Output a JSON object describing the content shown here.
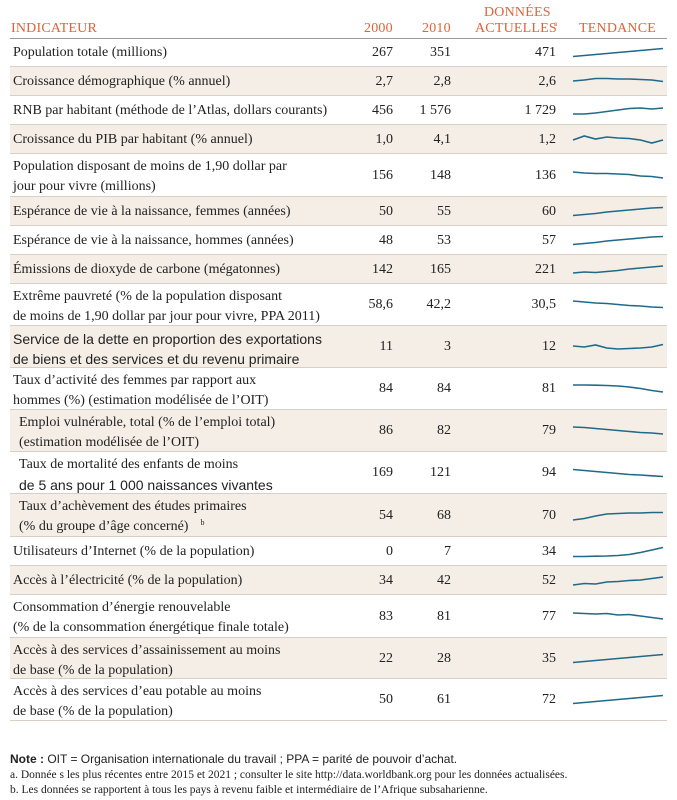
{
  "headers": {
    "indicator": "INDICATEUR",
    "y2000": "2000",
    "y2010": "2010",
    "current_line1": "DONNÉES",
    "current_line2": "ACTUELLES",
    "current_sup": "a",
    "trend": "TENDANCE"
  },
  "rows": [
    {
      "l1": "Population totale (millions)",
      "l2": "",
      "v2000": "267",
      "v2010": "351",
      "vcur": "471",
      "trend": [
        0.15,
        0.25,
        0.35,
        0.45,
        0.55,
        0.65,
        0.75,
        0.85,
        0.95
      ]
    },
    {
      "l1": "Croissance démographique (% annuel)",
      "l2": "",
      "v2000": "2,7",
      "v2010": "2,8",
      "vcur": "2,6",
      "trend": [
        0.6,
        0.7,
        0.85,
        0.85,
        0.8,
        0.8,
        0.75,
        0.7,
        0.55
      ]
    },
    {
      "l1": "RNB par habitant (méthode de l’Atlas, dollars courants)",
      "l2": "",
      "v2000": "456",
      "v2010": "1 576",
      "vcur": "1 729",
      "trend": [
        0.2,
        0.2,
        0.3,
        0.45,
        0.6,
        0.75,
        0.8,
        0.7,
        0.8
      ]
    },
    {
      "l1": "Croissance du PIB par habitant (% annuel)",
      "l2": "",
      "v2000": "1,0",
      "v2010": "4,1",
      "vcur": "1,2",
      "trend": [
        0.5,
        0.9,
        0.6,
        0.8,
        0.7,
        0.65,
        0.5,
        0.2,
        0.5
      ]
    },
    {
      "l1": "Population disposant de moins de 1,90 dollar par",
      "l2": "jour pour vivre (millions)",
      "v2000": "156",
      "v2010": "148",
      "vcur": "136",
      "trend": [
        0.9,
        0.8,
        0.75,
        0.75,
        0.7,
        0.65,
        0.5,
        0.45,
        0.3
      ]
    },
    {
      "l1": "Espérance de vie à la naissance, femmes (années)",
      "l2": "",
      "v2000": "50",
      "v2010": "55",
      "vcur": "60",
      "trend": [
        0.15,
        0.25,
        0.35,
        0.5,
        0.6,
        0.7,
        0.8,
        0.9,
        0.95
      ]
    },
    {
      "l1": "Espérance de vie à la naissance, hommes (années)",
      "l2": "",
      "v2000": "48",
      "v2010": "53",
      "vcur": "57",
      "trend": [
        0.15,
        0.25,
        0.35,
        0.5,
        0.6,
        0.7,
        0.8,
        0.9,
        0.95
      ]
    },
    {
      "l1": "Émissions de dioxyde de carbone (mégatonnes)",
      "l2": "",
      "v2000": "142",
      "v2010": "165",
      "vcur": "221",
      "trend": [
        0.2,
        0.3,
        0.25,
        0.35,
        0.45,
        0.6,
        0.7,
        0.8,
        0.9
      ]
    },
    {
      "l1": "Extrême pauvreté (% de la population disposant",
      "l2": "de moins de 1,90 dollar par jour pour vivre, PPA 2011)",
      "v2000": "58,6",
      "v2010": "42,2",
      "vcur": "30,5",
      "trend": [
        0.9,
        0.8,
        0.7,
        0.65,
        0.55,
        0.45,
        0.4,
        0.3,
        0.25
      ]
    },
    {
      "l1": "Service de la dette en proportion des exportations",
      "l2": "de biens et des services et du revenu primaire",
      "v2000": "11",
      "v2010": "3",
      "vcur": "12",
      "trend": [
        0.6,
        0.5,
        0.7,
        0.4,
        0.3,
        0.35,
        0.4,
        0.5,
        0.75
      ],
      "sans": true
    },
    {
      "l1": "Taux d’activité des femmes par rapport aux",
      "l2": "hommes (%) (estimation modélisée de l’OIT)",
      "v2000": "84",
      "v2010": "84",
      "vcur": "81",
      "trend": [
        0.9,
        0.9,
        0.88,
        0.85,
        0.8,
        0.7,
        0.55,
        0.35,
        0.2
      ]
    },
    {
      "l1": "Emploi vulnérable, total (% de l’emploi total)",
      "l2": "(estimation modélisée de l’OIT)",
      "v2000": "86",
      "v2010": "82",
      "vcur": "79",
      "trend": [
        0.9,
        0.85,
        0.75,
        0.65,
        0.55,
        0.45,
        0.35,
        0.3,
        0.2
      ],
      "indent": true
    },
    {
      "l1": "Taux de mortalité des enfants de moins",
      "l2": "de 5 ans pour 1 000 naissances vivantes",
      "v2000": "169",
      "v2010": "121",
      "vcur": "94",
      "trend": [
        0.85,
        0.75,
        0.65,
        0.55,
        0.45,
        0.35,
        0.3,
        0.22,
        0.15
      ],
      "sans2": true,
      "indent": true
    },
    {
      "l1": "Taux d’achèvement des études primaires",
      "l2": "(% du groupe d’âge concerné)",
      "l2_sup": "b",
      "v2000": "54",
      "v2010": "68",
      "vcur": "70",
      "trend": [
        0.1,
        0.25,
        0.5,
        0.7,
        0.75,
        0.8,
        0.8,
        0.85,
        0.85
      ],
      "indent": true
    },
    {
      "l1": "Utilisateurs d’Internet (% de la population)",
      "l2": "",
      "v2000": "0",
      "v2010": "7",
      "vcur": "34",
      "trend": [
        0.05,
        0.05,
        0.08,
        0.1,
        0.15,
        0.25,
        0.45,
        0.7,
        0.95
      ]
    },
    {
      "l1": "Accès à l’électricité (% de la population)",
      "l2": "",
      "v2000": "34",
      "v2010": "42",
      "vcur": "52",
      "trend": [
        0.1,
        0.25,
        0.2,
        0.4,
        0.45,
        0.55,
        0.6,
        0.75,
        0.9
      ]
    },
    {
      "l1": "Consommation d’énergie renouvelable",
      "l2": "(% de la consommation énergétique finale totale)",
      "v2000": "83",
      "v2010": "81",
      "vcur": "77",
      "trend": [
        0.9,
        0.85,
        0.8,
        0.85,
        0.7,
        0.75,
        0.6,
        0.45,
        0.3
      ]
    },
    {
      "l1": "Accès à des services d’assainissement au moins",
      "l2": "de base (% de la population)",
      "v2000": "22",
      "v2010": "28",
      "vcur": "35",
      "trend": [
        0.15,
        0.25,
        0.35,
        0.45,
        0.55,
        0.65,
        0.75,
        0.85,
        0.95
      ]
    },
    {
      "l1": "Accès à des services d’eau potable au moins",
      "l2": "de base (% de la population)",
      "v2000": "50",
      "v2010": "61",
      "vcur": "72",
      "trend": [
        0.15,
        0.25,
        0.35,
        0.45,
        0.55,
        0.65,
        0.75,
        0.85,
        0.95
      ]
    }
  ],
  "notes": {
    "note_bold": "Note :",
    "note_text": " OIT = Organisation internationale du travail ; PPA = parité de pouvoir d’achat.",
    "a": "a.  Donnée  s les plus récentes entre 2015 et 2021 ; consulter le site http://data.worldbank.org pour les données actualisées.",
    "b": "b. Les données se rapportent à tous les pays à revenu faible et intermédiaire de l’Afrique subsaharienne."
  },
  "colors": {
    "header": "#e0623a",
    "shade": "#f4eee6",
    "spark": "#1f6a8a"
  }
}
